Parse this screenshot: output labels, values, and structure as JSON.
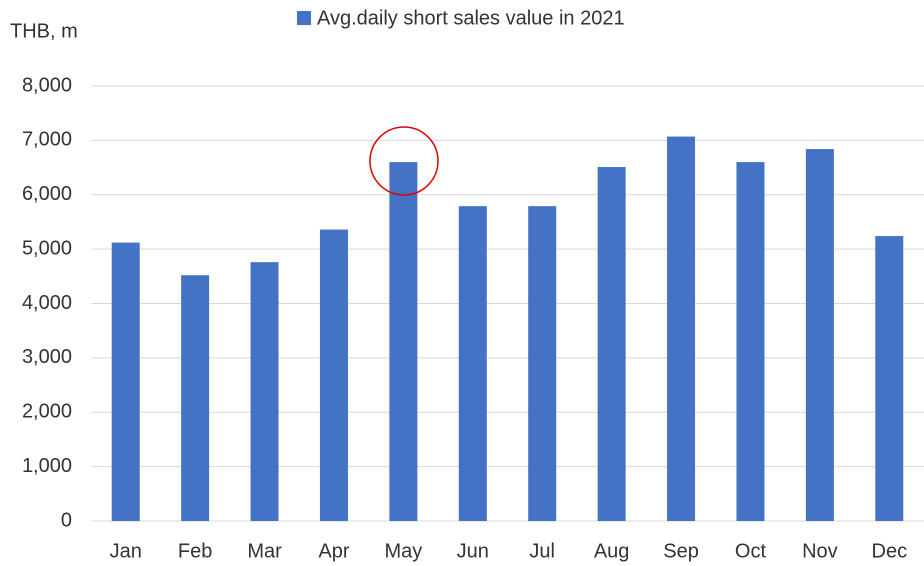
{
  "chart_data": {
    "type": "bar",
    "y_label": "THB, m",
    "legend": "Avg.daily short sales value in 2021",
    "categories": [
      "Jan",
      "Feb",
      "Mar",
      "Apr",
      "May",
      "Jun",
      "Jul",
      "Aug",
      "Sep",
      "Oct",
      "Nov",
      "Dec"
    ],
    "values": [
      5120,
      4520,
      4760,
      5360,
      6600,
      5790,
      5790,
      6510,
      7070,
      6600,
      6840,
      5240
    ],
    "color": "#4472c4",
    "ylim": [
      0,
      8000
    ],
    "yticks": [
      0,
      {
        "value": 1000,
        "label": "1,000"
      },
      {
        "value": 2000,
        "label": "2,000"
      },
      {
        "value": 3000,
        "label": "3,000"
      },
      {
        "value": 4000,
        "label": "4,000"
      },
      {
        "value": 5000,
        "label": "5,000"
      },
      {
        "value": 6000,
        "label": "6,000"
      },
      {
        "value": 7000,
        "label": "7,000"
      },
      {
        "value": 8000,
        "label": "8,000"
      }
    ],
    "grid": true
  }
}
